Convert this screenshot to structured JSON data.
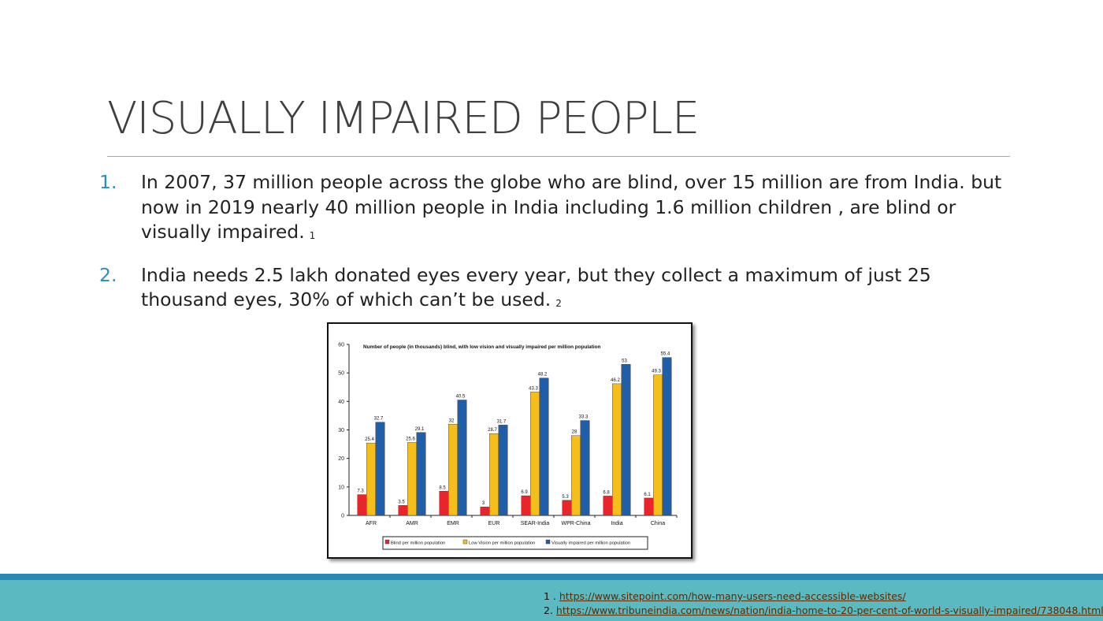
{
  "slide": {
    "title": "VISUALLY IMPAIRED PEOPLE",
    "bullets": [
      {
        "num": "1.",
        "text": "In 2007, 37 million people across the globe who are blind, over 15 million are from India. but now in 2019 nearly 40 million people in India including 1.6 million children , are blind or visually impaired.",
        "ref": "1"
      },
      {
        "num": "2.",
        "text": "India needs 2.5 lakh donated eyes every year, but they collect a maximum of just 25 thousand eyes, 30% of which can’t be used.",
        "ref": "2"
      }
    ],
    "references": [
      {
        "label": "1 . ",
        "url": "https://www.sitepoint.com/how-many-users-need-accessible-websites/"
      },
      {
        "label": "2. ",
        "url": "https://www.tribuneindia.com/news/nation/india-home-to-20-per-cent-of-world-s-visually-impaired/738048.html"
      }
    ],
    "colors": {
      "title": "#3f3f3f",
      "number": "#2f8fb3",
      "footer_band": "#5ab9c1",
      "footer_stripe": "#2b87b3"
    }
  },
  "chart_data": {
    "type": "bar",
    "title": "Number of people (in thousands)  blind, with low vision and visually impaired per million population",
    "categories": [
      "AFR",
      "AMR",
      "EMR",
      "EUR",
      "SEAR-India",
      "WPR-China",
      "India",
      "China"
    ],
    "series": [
      {
        "name": "Blind per million population",
        "color": "#e8252b",
        "values": [
          7.3,
          3.5,
          8.5,
          3,
          6.9,
          5.3,
          6.8,
          6.1
        ],
        "labels": [
          "7.3",
          "3.5",
          "8.5",
          "3",
          "6.9",
          "5.3",
          "6.8",
          "6.1"
        ]
      },
      {
        "name": "Low Vision per million population",
        "color": "#f6be1a",
        "values": [
          25.4,
          25.6,
          32,
          28.7,
          43.3,
          28,
          46.2,
          49.3
        ],
        "labels": [
          "25.4",
          "25.6",
          "32",
          "28.7",
          "43.3",
          "28",
          "46.2",
          "49.3"
        ]
      },
      {
        "name": "Visually impaired per million population",
        "color": "#1f5ea8",
        "values": [
          32.7,
          29.1,
          40.5,
          31.7,
          48.2,
          33.3,
          53,
          55.4
        ],
        "labels": [
          "32.7",
          "29.1",
          "40.5",
          "31.7",
          "48.2",
          "33.3",
          "53",
          "55.4"
        ]
      }
    ],
    "yticks": [
      "0",
      "10",
      "20",
      "30",
      "40",
      "50",
      "60"
    ],
    "ylim": [
      0,
      60
    ],
    "xlabel": "",
    "ylabel": "",
    "grid": false,
    "legend_position": "bottom"
  }
}
